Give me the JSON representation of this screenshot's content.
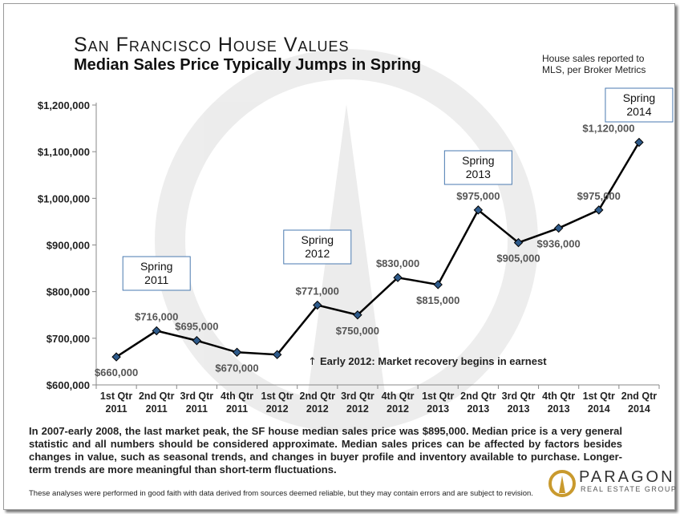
{
  "header": {
    "title": "San Francisco House Values",
    "subtitle": "Median Sales Price Typically Jumps in Spring",
    "source_note": "House sales reported to MLS, per Broker Metrics"
  },
  "chart_data": {
    "type": "line",
    "categories": [
      [
        "1st Qtr",
        "2011"
      ],
      [
        "2nd Qtr",
        "2011"
      ],
      [
        "3rd Qtr",
        "2011"
      ],
      [
        "4th Qtr",
        "2011"
      ],
      [
        "1st Qtr",
        "2012"
      ],
      [
        "2nd Qtr",
        "2012"
      ],
      [
        "3rd Qtr",
        "2012"
      ],
      [
        "4th Qtr",
        "2012"
      ],
      [
        "1st Qtr",
        "2013"
      ],
      [
        "2nd Qtr",
        "2013"
      ],
      [
        "3rd Qtr",
        "2013"
      ],
      [
        "4th Qtr",
        "2013"
      ],
      [
        "1st Qtr",
        "2014"
      ],
      [
        "2nd Qtr",
        "2014"
      ]
    ],
    "values": [
      660000,
      716000,
      695000,
      670000,
      665000,
      771000,
      750000,
      830000,
      815000,
      975000,
      905000,
      936000,
      975000,
      1120000
    ],
    "data_labels": [
      "$660,000",
      "$716,000",
      "$695,000",
      "$670,000",
      "",
      "$771,000",
      "$750,000",
      "$830,000",
      "$815,000",
      "$975,000",
      "$905,000",
      "$936,000",
      "$975,000",
      "$1,120,000"
    ],
    "ylim": [
      600000,
      1200000
    ],
    "yticks": [
      600000,
      700000,
      800000,
      900000,
      1000000,
      1100000,
      1200000
    ],
    "ytick_labels": [
      "$600,000",
      "$700,000",
      "$800,000",
      "$900,000",
      "$1,000,000",
      "$1,100,000",
      "$1,200,000"
    ],
    "grid": false,
    "line_color": "#000000",
    "marker_color": "#2e5a8a",
    "callouts": [
      {
        "lines": [
          "Spring",
          "2011"
        ],
        "index": 1
      },
      {
        "lines": [
          "Spring",
          "2012"
        ],
        "index": 5
      },
      {
        "lines": [
          "Spring",
          "2013"
        ],
        "index": 9
      },
      {
        "lines": [
          "Spring",
          "2014"
        ],
        "index": 13
      }
    ],
    "annotation": "Early 2012:  Market recovery begins in earnest"
  },
  "footer": {
    "note": "In 2007-early 2008, the last market peak, the SF house median sales price was $895,000. Median price is a very general statistic and all numbers should be considered approximate. Median sales prices can be affected by factors besides changes in value, such as seasonal trends, and changes in buyer profile and inventory available to purchase. Longer-term trends are more meaningful than short-term fluctuations.",
    "disclaimer": "These analyses were performed in good faith with data derived from sources deemed reliable, but they may contain errors and are subject to revision.",
    "logo_name": "PARAGON",
    "logo_tagline": "REAL ESTATE GROUP"
  }
}
